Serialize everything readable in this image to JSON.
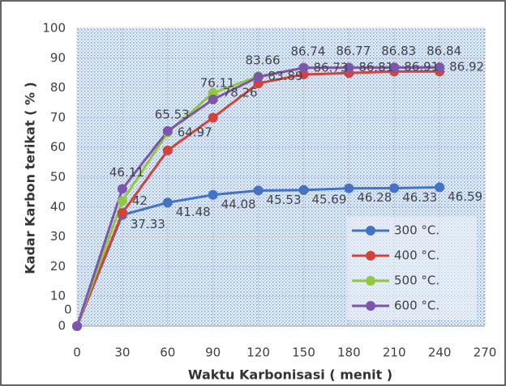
{
  "chart_data": {
    "type": "line",
    "x_label": "Waktu Karbonisasi ( menit )",
    "y_label": "Kadar  Karbon terikat ( % )",
    "x": [
      0,
      30,
      60,
      90,
      120,
      150,
      180,
      210,
      240
    ],
    "xlim": [
      0,
      270
    ],
    "xticks": [
      0,
      30,
      60,
      90,
      120,
      150,
      180,
      210,
      240,
      270
    ],
    "ylim": [
      0,
      100
    ],
    "yticks": [
      0,
      10,
      20,
      30,
      40,
      50,
      60,
      70,
      80,
      90,
      100
    ],
    "grid": true,
    "legend": "right",
    "series": [
      {
        "name": "300 °C.",
        "color": "#4472c4",
        "values": [
          0,
          37.33,
          41.48,
          44.08,
          45.53,
          45.69,
          46.28,
          46.33,
          46.59
        ],
        "value_labels": [
          null,
          "37.33",
          "41.48",
          "44.08",
          "45.53",
          "45.69",
          "46.28",
          "46.33",
          "46.59"
        ]
      },
      {
        "name": "400 °C.",
        "color": "#d2433b",
        "values": [
          0,
          38,
          59,
          70,
          81.5,
          84.5,
          85,
          85.5,
          85.5
        ],
        "value_labels": [
          null,
          null,
          null,
          null,
          null,
          null,
          null,
          null,
          null
        ]
      },
      {
        "name": "500 °C.",
        "color": "#92c83e",
        "values": [
          0,
          42,
          64.97,
          78.26,
          83.89,
          86.73,
          86.81,
          86.91,
          86.92
        ],
        "value_labels": [
          null,
          "42",
          "64.97",
          "78.26",
          "83.89",
          "86.73",
          "86.81",
          "86.91",
          "86.92"
        ]
      },
      {
        "name": "600 °C.",
        "color": "#7d55ad",
        "values": [
          0,
          46.11,
          65.53,
          76.11,
          83.66,
          86.74,
          86.77,
          86.83,
          86.84
        ],
        "value_labels": [
          "0",
          "46.11",
          "65.53",
          "76.11",
          "83.66",
          "86.74",
          "86.77",
          "86.83",
          "86.84"
        ]
      }
    ]
  }
}
